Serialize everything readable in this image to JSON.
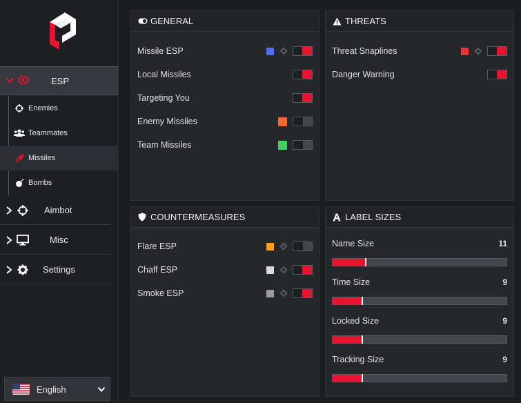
{
  "sidebar": {
    "esp": {
      "label": "ESP"
    },
    "sub_items": [
      {
        "label": "Enemies",
        "icon": "crosshair-icon"
      },
      {
        "label": "Teammates",
        "icon": "users-icon"
      },
      {
        "label": "Missiles",
        "icon": "rocket-icon",
        "active": true
      },
      {
        "label": "Bombs",
        "icon": "bomb-icon"
      }
    ],
    "aimbot": {
      "label": "Aimbot"
    },
    "misc": {
      "label": "Misc"
    },
    "settings": {
      "label": "Settings"
    },
    "language": {
      "label": "English"
    }
  },
  "general": {
    "title": "GENERAL",
    "rows": [
      {
        "label": "Missile ESP",
        "color": "#4f6df5",
        "gear": true,
        "on": true
      },
      {
        "label": "Local Missiles",
        "on": true
      },
      {
        "label": "Targeting You",
        "on": true
      },
      {
        "label": "Enemy Missiles",
        "color": "#f26633",
        "on": false
      },
      {
        "label": "Team Missiles",
        "color": "#44cc66",
        "on": false
      }
    ]
  },
  "threats": {
    "title": "THREATS",
    "rows": [
      {
        "label": "Threat Snaplines",
        "color": "#e8332e",
        "gear": true,
        "on": true
      },
      {
        "label": "Danger Warning",
        "on": true
      }
    ]
  },
  "countermeasures": {
    "title": "COUNTERMEASURES",
    "rows": [
      {
        "label": "Flare ESP",
        "color": "#f5a21a",
        "gear": true,
        "on": false
      },
      {
        "label": "Chaff ESP",
        "color": "#d8d8d8",
        "gear": true,
        "on": true
      },
      {
        "label": "Smoke ESP",
        "color": "#9a9a9a",
        "gear": true,
        "on": true
      }
    ]
  },
  "label_sizes": {
    "title": "LABEL SIZES",
    "sliders": [
      {
        "label": "Name Size",
        "value": "11",
        "fraction": 0.19
      },
      {
        "label": "Time Size",
        "value": "9",
        "fraction": 0.17
      },
      {
        "label": "Locked Size",
        "value": "9",
        "fraction": 0.17
      },
      {
        "label": "Tracking Size",
        "value": "9",
        "fraction": 0.17
      }
    ]
  },
  "colors": {
    "accent": "#e8132e",
    "panel": "#26272b",
    "background": "#1c1d21"
  }
}
